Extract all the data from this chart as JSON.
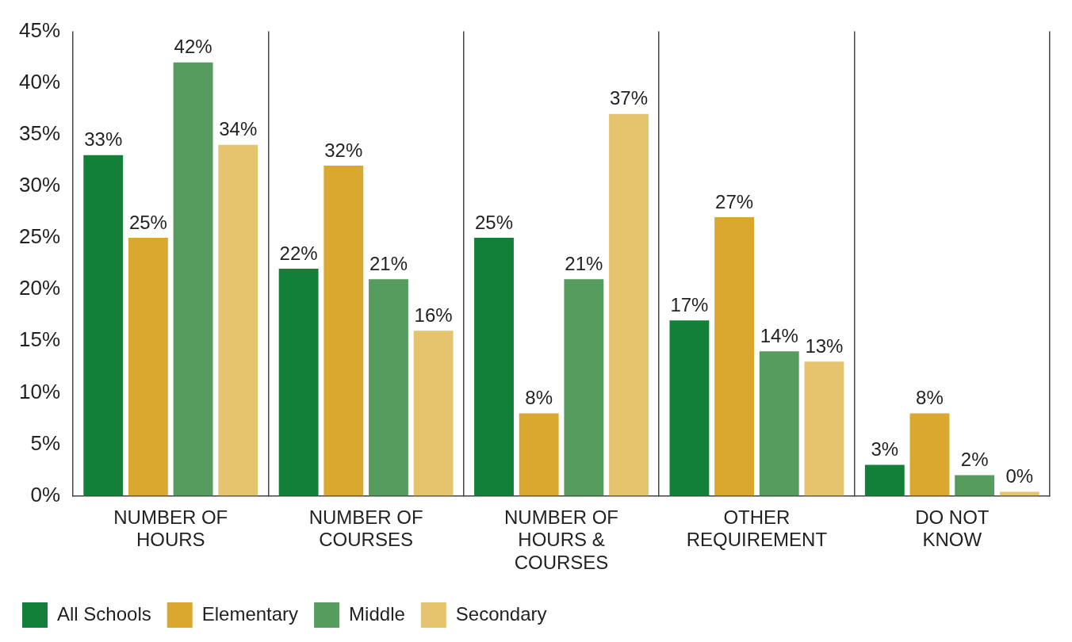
{
  "chart_data": {
    "type": "bar",
    "categories": [
      "NUMBER OF HOURS",
      "NUMBER OF COURSES",
      "NUMBER OF HOURS & COURSES",
      "OTHER REQUIREMENT",
      "DO NOT KNOW"
    ],
    "series": [
      {
        "name": "All Schools",
        "color": "#138039",
        "values": [
          33,
          22,
          25,
          17,
          3
        ],
        "value_labels": [
          "33%",
          "22%",
          "25%",
          "17%",
          "3%"
        ]
      },
      {
        "name": "Elementary",
        "color": "#daa82e",
        "values": [
          25,
          32,
          8,
          27,
          8
        ],
        "value_labels": [
          "25%",
          "32%",
          "8%",
          "27%",
          "8%"
        ]
      },
      {
        "name": "Middle",
        "color": "#569c5e",
        "values": [
          42,
          21,
          21,
          14,
          2
        ],
        "value_labels": [
          "42%",
          "21%",
          "21%",
          "14%",
          "2%"
        ]
      },
      {
        "name": "Secondary",
        "color": "#e6c46e",
        "values": [
          34,
          16,
          37,
          13,
          0.4
        ],
        "value_labels": [
          "34%",
          "16%",
          "37%",
          "13%",
          "0%"
        ]
      }
    ],
    "ylim": [
      0,
      45
    ],
    "yticks": [
      {
        "value": 0,
        "label": "0%"
      },
      {
        "value": 5,
        "label": "5%"
      },
      {
        "value": 10,
        "label": "10%"
      },
      {
        "value": 15,
        "label": "15%"
      },
      {
        "value": 20,
        "label": "20%"
      },
      {
        "value": 25,
        "label": "25%"
      },
      {
        "value": 30,
        "label": "30%"
      },
      {
        "value": 35,
        "label": "35%"
      },
      {
        "value": 40,
        "label": "40%"
      },
      {
        "value": 45,
        "label": "45%"
      }
    ],
    "grid": "x",
    "legend": "bottom"
  }
}
